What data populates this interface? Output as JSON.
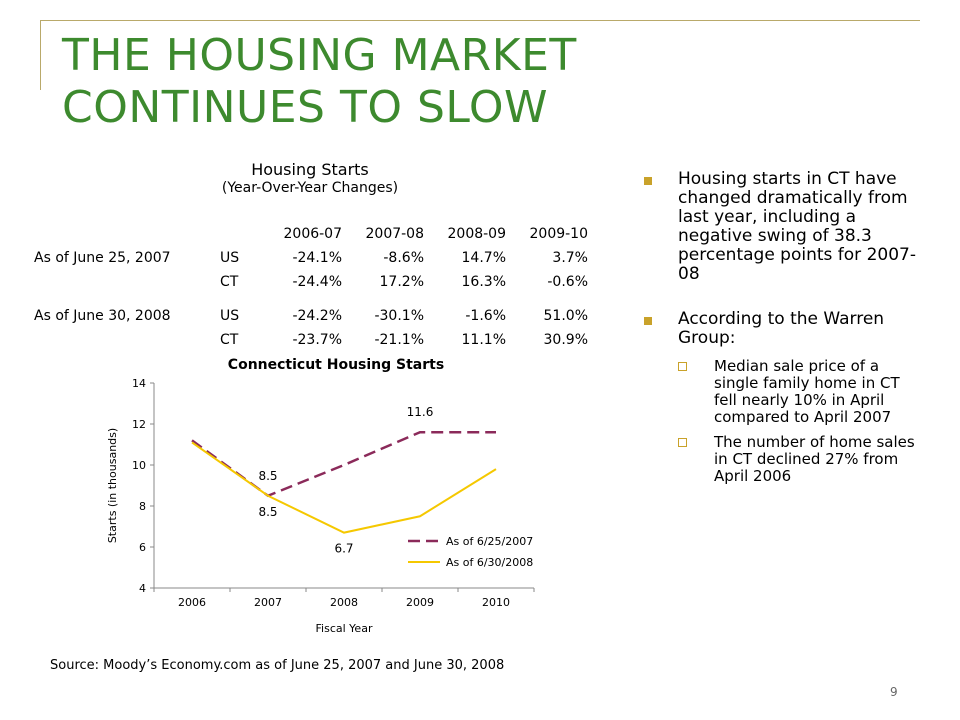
{
  "slide": {
    "title_line1": "THE HOUSING MARKET",
    "title_line2": "CONTINUES TO SLOW",
    "source": "Source: Moody’s Economy.com as of June 25, 2007 and June 30, 2008",
    "page_number": "9",
    "colors": {
      "title": "#3d8a2e",
      "bullet": "#c9a22a",
      "frame": "#b9a96a"
    }
  },
  "table": {
    "title": "Housing Starts",
    "subtitle": "(Year-Over-Year Changes)",
    "columns": [
      "2006-07",
      "2007-08",
      "2008-09",
      "2009-10"
    ],
    "rows": [
      {
        "label": "As of June 25, 2007",
        "region": "US",
        "values": [
          "-24.1%",
          "-8.6%",
          "14.7%",
          "3.7%"
        ]
      },
      {
        "label": "",
        "region": "CT",
        "values": [
          "-24.4%",
          "17.2%",
          "16.3%",
          "-0.6%"
        ]
      },
      {
        "label": "As of June 30, 2008",
        "region": "US",
        "values": [
          "-24.2%",
          "-30.1%",
          "-1.6%",
          "51.0%"
        ]
      },
      {
        "label": "",
        "region": "CT",
        "values": [
          "-23.7%",
          "-21.1%",
          "11.1%",
          "30.9%"
        ]
      }
    ]
  },
  "chart_data": {
    "type": "line",
    "title": "Connecticut Housing Starts",
    "xlabel": "Fiscal Year",
    "ylabel": "Starts (in thousands)",
    "x": [
      "2006",
      "2007",
      "2008",
      "2009",
      "2010"
    ],
    "ylim": [
      4,
      14
    ],
    "yticks": [
      "4",
      "6",
      "8",
      "10",
      "12",
      "14"
    ],
    "grid": false,
    "legend_position": "bottom-right",
    "series": [
      {
        "name": "As of 6/25/2007",
        "values": [
          11.2,
          8.5,
          10.0,
          11.6,
          11.6
        ],
        "color": "#8b2a5a",
        "style": "dashed"
      },
      {
        "name": "As of 6/30/2008",
        "values": [
          11.1,
          8.5,
          6.7,
          7.5,
          9.8
        ],
        "color": "#f5c800",
        "style": "solid"
      }
    ],
    "annotations": [
      {
        "text": "8.5",
        "x": "2007",
        "y": 8.5,
        "series": "As of 6/25/2007"
      },
      {
        "text": "11.6",
        "x": "2009",
        "y": 11.6,
        "series": "As of 6/25/2007"
      },
      {
        "text": "8.5",
        "x": "2007",
        "y": 8.5,
        "series": "As of 6/30/2008"
      },
      {
        "text": "6.7",
        "x": "2008",
        "y": 6.7,
        "series": "As of 6/30/2008"
      }
    ]
  },
  "bullets": [
    {
      "text": "Housing starts in CT have changed dramatically from last year, including a negative swing of 38.3 percentage points for 2007-08",
      "subs": []
    },
    {
      "text": "According to the Warren Group:",
      "subs": [
        "Median sale price of a single family home in CT fell nearly 10% in April compared to April 2007",
        "The number of home sales in CT declined 27% from April 2006"
      ]
    }
  ]
}
